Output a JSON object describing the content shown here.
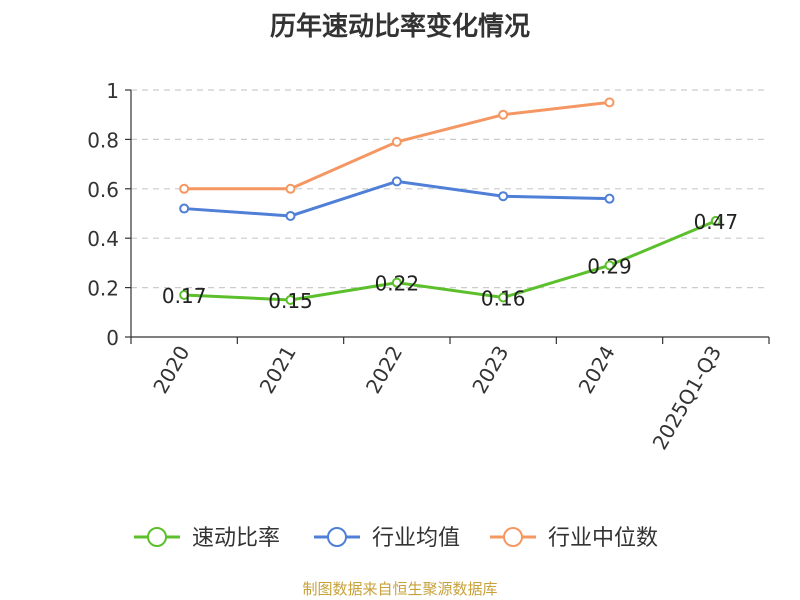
{
  "chart_data": {
    "type": "line",
    "title": "历年速动比率变化情况",
    "categories": [
      "2020",
      "2021",
      "2022",
      "2023",
      "2024",
      "2025Q1-Q3"
    ],
    "series": [
      {
        "name": "速动比率",
        "color": "#5cc02c",
        "values": [
          0.17,
          0.15,
          0.22,
          0.16,
          0.29,
          0.47
        ],
        "show_labels": true
      },
      {
        "name": "行业均值",
        "color": "#4f7fd6",
        "values": [
          0.52,
          0.49,
          0.63,
          0.57,
          0.56,
          null
        ],
        "show_labels": false
      },
      {
        "name": "行业中位数",
        "color": "#f59762",
        "values": [
          0.6,
          0.6,
          0.79,
          0.9,
          0.95,
          null
        ],
        "show_labels": false
      }
    ],
    "ylim": [
      0,
      1
    ],
    "yticks": [
      0,
      0.2,
      0.4,
      0.6,
      0.8,
      1
    ],
    "ytick_labels": [
      "0",
      "0.2",
      "0.4",
      "0.6",
      "0.8",
      "1"
    ],
    "grid": true,
    "legend_position": "bottom"
  },
  "footer": {
    "source": "制图数据来自恒生聚源数据库"
  }
}
